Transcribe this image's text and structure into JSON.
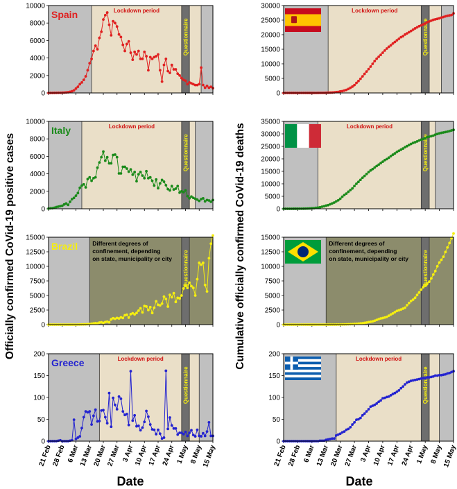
{
  "figure": {
    "left_ylabel": "Officially confirmed CoVid-19 positive cases",
    "right_ylabel": "Cumulative officially confirmed CoVid-19 deaths",
    "left_xlabel": "Date",
    "right_xlabel": "Date"
  },
  "colors": {
    "background_gray": "#c0c0c0",
    "lockdown_beige": "#eadfc8",
    "questionnaire_dark": "#6e6e6e",
    "brazil_olive": "#8c8c6c",
    "spain": "#e02020",
    "italy": "#1a8a1a",
    "brazil": "#f5ee10",
    "greece": "#2323d0",
    "questionnaire_text": "#f5ee10",
    "lockdown_text_red": "#d01010"
  },
  "chart_data": [
    {
      "id": "spain-cases",
      "type": "line",
      "country": "Spain",
      "title": "Spain",
      "ylim": [
        0,
        10000
      ],
      "yticks": [
        "0",
        "2000",
        "4000",
        "6000",
        "8000",
        "10000"
      ],
      "xticks": [
        "21 Feb",
        "28 Feb",
        "6 Mar",
        "13 Mar",
        "20 Mar",
        "27 Mar",
        "3 Apr",
        "10 Apr",
        "17 Apr",
        "24 Apr",
        "1 May",
        "8 May",
        "15 May"
      ],
      "xlim_days": [
        0,
        84
      ],
      "lockdown_days": [
        22,
        78
      ],
      "lockdown_label": "Lockdown period",
      "questionnaire_days": [
        68,
        72
      ],
      "questionnaire_label": "Questionnaire",
      "series": [
        {
          "values": [
            0,
            0,
            0,
            5,
            10,
            15,
            20,
            30,
            40,
            60,
            80,
            130,
            200,
            300,
            500,
            700,
            1000,
            1200,
            1500,
            1900,
            2600,
            3400,
            3900,
            4800,
            5400,
            5000,
            6300,
            7000,
            8400,
            8900,
            9200,
            7800,
            6600,
            8200,
            8000,
            7600,
            6700,
            6400,
            5500,
            4800,
            5600,
            5900,
            4600,
            3800,
            4700,
            4400,
            4800,
            3900,
            3900,
            4700,
            4200,
            2600,
            4100,
            3900,
            4100,
            4200,
            4400,
            2600,
            1300,
            3200,
            3900,
            2500,
            2300,
            3200,
            2700,
            2700,
            2200,
            2000,
            1700,
            1500,
            1400,
            1000,
            1200,
            1100,
            1000,
            900,
            900,
            1000,
            2900,
            900,
            600,
            800,
            600,
            700,
            550
          ]
        }
      ]
    },
    {
      "id": "spain-deaths",
      "type": "line",
      "country": "Spain",
      "flag": "spain-flag",
      "ylim": [
        0,
        30000
      ],
      "yticks": [
        "0",
        "5000",
        "10000",
        "15000",
        "20000",
        "25000",
        "30000"
      ],
      "xticks": [
        "21 Feb",
        "28 Feb",
        "6 Mar",
        "13 Mar",
        "20 Mar",
        "27 Mar",
        "3 Apr",
        "10 Apr",
        "17 Apr",
        "24 Apr",
        "1 May",
        "8 May",
        "15 May"
      ],
      "xlim_days": [
        0,
        84
      ],
      "lockdown_days": [
        22,
        78
      ],
      "lockdown_label": "Lockdown period",
      "questionnaire_days": [
        68,
        72
      ],
      "questionnaire_label": "Questionnaire",
      "series": [
        {
          "values": [
            0,
            0,
            0,
            0,
            0,
            0,
            0,
            0,
            0,
            0,
            0,
            0,
            0,
            0,
            1,
            3,
            5,
            10,
            17,
            28,
            35,
            48,
            84,
            120,
            136,
            200,
            289,
            342,
            533,
            623,
            830,
            1043,
            1375,
            1772,
            2182,
            2696,
            3434,
            4089,
            4858,
            5690,
            6528,
            7340,
            8189,
            9053,
            10003,
            10935,
            11744,
            12418,
            13055,
            13798,
            14555,
            15238,
            15843,
            16353,
            16972,
            17489,
            18056,
            18579,
            19130,
            19478,
            20043,
            20453,
            20852,
            21282,
            21717,
            22157,
            22524,
            22902,
            23190,
            23521,
            23822,
            24275,
            24543,
            24824,
            25100,
            25264,
            25428,
            25613,
            25857,
            26070,
            26299,
            26478,
            26621,
            26744,
            27321
          ]
        }
      ]
    },
    {
      "id": "italy-cases",
      "type": "line",
      "country": "Italy",
      "title": "Italy",
      "ylim": [
        0,
        10000
      ],
      "yticks": [
        "0",
        "2000",
        "4000",
        "6000",
        "8000",
        "10000"
      ],
      "xticks": [
        "21 Feb",
        "28 Feb",
        "6 Mar",
        "13 Mar",
        "20 Mar",
        "27 Mar",
        "3 Apr",
        "10 Apr",
        "17 Apr",
        "24 Apr",
        "1 May",
        "8 May",
        "15 May"
      ],
      "xlim_days": [
        0,
        84
      ],
      "lockdown_days": [
        17,
        75
      ],
      "lockdown_label": "Lockdown period",
      "questionnaire_days": [
        68,
        72
      ],
      "questionnaire_label": "Questionnaire",
      "series": [
        {
          "values": [
            20,
            60,
            70,
            120,
            200,
            250,
            300,
            350,
            500,
            600,
            450,
            800,
            1100,
            1250,
            1500,
            1800,
            2400,
            2650,
            2800,
            2450,
            3400,
            3600,
            3200,
            3500,
            3600,
            4700,
            5300,
            5900,
            6550,
            5500,
            5900,
            5200,
            5200,
            6150,
            6200,
            5900,
            4050,
            4050,
            4800,
            4800,
            4600,
            4250,
            4500,
            3900,
            4200,
            3150,
            3950,
            4200,
            3800,
            3500,
            4300,
            3500,
            3600,
            3200,
            2650,
            3350,
            2350,
            2900,
            3300,
            3100,
            2700,
            2250,
            2100,
            2600,
            2200,
            2300,
            2600,
            1850,
            2000,
            1900,
            2100,
            1450,
            1200,
            1400,
            1250,
            1150,
            1050,
            900,
            1100,
            1200,
            850,
            1000,
            950,
            800,
            1000
          ]
        }
      ]
    },
    {
      "id": "italy-deaths",
      "type": "line",
      "country": "Italy",
      "flag": "italy-flag",
      "ylim": [
        0,
        35000
      ],
      "yticks": [
        "0",
        "5000",
        "10000",
        "15000",
        "20000",
        "25000",
        "30000",
        "35000"
      ],
      "xticks": [
        "21 Feb",
        "28 Feb",
        "6 Mar",
        "13 Mar",
        "20 Mar",
        "27 Mar",
        "3 Apr",
        "10 Apr",
        "17 Apr",
        "24 Apr",
        "1 May",
        "8 May",
        "15 May"
      ],
      "xlim_days": [
        0,
        84
      ],
      "lockdown_days": [
        17,
        75
      ],
      "lockdown_label": "Lockdown period",
      "questionnaire_days": [
        68,
        72
      ],
      "questionnaire_label": "Questionnaire",
      "series": [
        {
          "values": [
            1,
            2,
            3,
            7,
            10,
            12,
            17,
            21,
            29,
            34,
            52,
            79,
            107,
            148,
            197,
            233,
            366,
            463,
            631,
            827,
            1016,
            1266,
            1441,
            1809,
            2158,
            2503,
            2978,
            3405,
            4032,
            4825,
            5476,
            6077,
            6820,
            7503,
            8165,
            9134,
            10023,
            10779,
            11591,
            12428,
            13155,
            13915,
            14681,
            15362,
            15887,
            16523,
            17127,
            17669,
            18279,
            18849,
            19468,
            19899,
            20465,
            21067,
            21645,
            22170,
            22745,
            23227,
            23660,
            24114,
            24648,
            25085,
            25549,
            25969,
            26384,
            26644,
            26977,
            27359,
            27682,
            27967,
            28236,
            28710,
            28884,
            29079,
            29315,
            29684,
            29958,
            30201,
            30395,
            30560,
            30739,
            30911,
            31106,
            31368,
            31610
          ]
        }
      ]
    },
    {
      "id": "brazil-cases",
      "type": "line",
      "country": "Brazil",
      "title": "Brazil",
      "ylim": [
        0,
        15000
      ],
      "yticks": [
        "0",
        "2500",
        "5000",
        "7500",
        "10000",
        "12500",
        "15000"
      ],
      "xticks": [
        "21 Feb",
        "28 Feb",
        "6 Mar",
        "13 Mar",
        "20 Mar",
        "27 Mar",
        "3 Apr",
        "10 Apr",
        "17 Apr",
        "24 Apr",
        "1 May",
        "8 May",
        "15 May"
      ],
      "xlim_days": [
        0,
        84
      ],
      "confinement_days": [
        21,
        84
      ],
      "confinement_label": [
        "Different degrees of",
        "confinement, depending",
        "on state, municipality or city"
      ],
      "questionnaire_days": [
        68,
        72
      ],
      "questionnaire_label": "Questionnaire",
      "series": [
        {
          "values": [
            0,
            0,
            0,
            0,
            0,
            0,
            0,
            0,
            0,
            0,
            0,
            0,
            0,
            0,
            0,
            10,
            20,
            30,
            40,
            50,
            80,
            100,
            150,
            200,
            250,
            200,
            350,
            400,
            300,
            450,
            500,
            400,
            900,
            1100,
            1000,
            1150,
            1050,
            1250,
            1150,
            1600,
            1700,
            1200,
            1800,
            1950,
            1750,
            2000,
            2400,
            2800,
            2100,
            3200,
            3100,
            2500,
            3000,
            2000,
            2900,
            4000,
            3400,
            3300,
            3600,
            4800,
            4400,
            3100,
            5100,
            4700,
            5400,
            3900,
            4600,
            4500,
            5000,
            6200,
            6700,
            6300,
            7200,
            6600,
            6300,
            5000,
            7800,
            10600,
            10300,
            10600,
            6800,
            5700,
            11400,
            13900,
            15300
          ]
        }
      ]
    },
    {
      "id": "brazil-deaths",
      "type": "line",
      "country": "Brazil",
      "flag": "brazil-flag",
      "ylim": [
        0,
        15000
      ],
      "yticks": [
        "0",
        "2500",
        "5000",
        "7500",
        "10000",
        "12500",
        "15000"
      ],
      "xticks": [
        "21 Feb",
        "28 Feb",
        "6 Mar",
        "13 Mar",
        "20 Mar",
        "27 Mar",
        "3 Apr",
        "10 Apr",
        "17 Apr",
        "24 Apr",
        "1 May",
        "8 May",
        "15 May"
      ],
      "xlim_days": [
        0,
        84
      ],
      "confinement_days": [
        21,
        84
      ],
      "confinement_label": [
        "Different degrees of",
        "confinement, depending",
        "on state, municipality or city"
      ],
      "questionnaire_days": [
        68,
        72
      ],
      "questionnaire_label": "Questionnaire",
      "series": [
        {
          "values": [
            0,
            0,
            0,
            0,
            0,
            0,
            0,
            0,
            0,
            0,
            0,
            0,
            0,
            0,
            0,
            0,
            0,
            0,
            0,
            0,
            0,
            0,
            0,
            0,
            1,
            3,
            6,
            11,
            18,
            25,
            34,
            46,
            57,
            77,
            92,
            114,
            136,
            159,
            201,
            240,
            299,
            359,
            432,
            486,
            553,
            667,
            800,
            941,
            1056,
            1124,
            1223,
            1328,
            1532,
            1736,
            1924,
            2141,
            2347,
            2462,
            2587,
            2741,
            2906,
            3331,
            3704,
            4057,
            4286,
            4603,
            5083,
            5513,
            6006,
            6412,
            6761,
            7051,
            7367,
            7938,
            8588,
            9190,
            10017,
            10656,
            11123,
            11653,
            12461,
            13240,
            13999,
            14817,
            15633
          ]
        }
      ]
    },
    {
      "id": "greece-cases",
      "type": "line",
      "country": "Greece",
      "title": "Greece",
      "ylim": [
        0,
        200
      ],
      "yticks": [
        "0",
        "50",
        "100",
        "150",
        "200"
      ],
      "xticks": [
        "21 Feb",
        "28 Feb",
        "6 Mar",
        "13 Mar",
        "20 Mar",
        "27 Mar",
        "3 Apr",
        "10 Apr",
        "17 Apr",
        "24 Apr",
        "1 May",
        "8 May",
        "15 May"
      ],
      "xlim_days": [
        0,
        84
      ],
      "lockdown_days": [
        26,
        77
      ],
      "lockdown_label": "Lockdown period",
      "questionnaire_days": [
        68,
        72
      ],
      "questionnaire_label": "Questionnaire",
      "series": [
        {
          "values": [
            0,
            0,
            0,
            0,
            0,
            1,
            2,
            0,
            0,
            0,
            0,
            1,
            2,
            49,
            5,
            8,
            11,
            30,
            55,
            68,
            66,
            68,
            38,
            58,
            72,
            45,
            46,
            70,
            71,
            55,
            41,
            110,
            33,
            99,
            83,
            73,
            102,
            97,
            68,
            60,
            62,
            37,
            160,
            47,
            59,
            34,
            35,
            25,
            31,
            44,
            69,
            56,
            38,
            27,
            26,
            16,
            26,
            17,
            6,
            8,
            161,
            28,
            54,
            36,
            29,
            29,
            15,
            19,
            19,
            16,
            21,
            12,
            19,
            25,
            14,
            11,
            26,
            12,
            11,
            18,
            12,
            22,
            43,
            12,
            12
          ]
        }
      ]
    },
    {
      "id": "greece-deaths",
      "type": "line",
      "country": "Greece",
      "flag": "greece-flag",
      "ylim": [
        0,
        200
      ],
      "yticks": [
        "0",
        "50",
        "100",
        "150",
        "200"
      ],
      "xticks": [
        "21 Feb",
        "28 Feb",
        "6 Mar",
        "13 Mar",
        "20 Mar",
        "27 Mar",
        "3 Apr",
        "10 Apr",
        "17 Apr",
        "24 Apr",
        "1 May",
        "8 May",
        "15 May"
      ],
      "xlim_days": [
        0,
        84
      ],
      "lockdown_days": [
        26,
        77
      ],
      "lockdown_label": "Lockdown period",
      "questionnaire_days": [
        68,
        72
      ],
      "questionnaire_label": "Questionnaire",
      "series": [
        {
          "values": [
            0,
            0,
            0,
            0,
            0,
            0,
            0,
            0,
            0,
            0,
            0,
            0,
            0,
            0,
            0,
            0,
            0,
            0,
            1,
            1,
            1,
            3,
            4,
            5,
            6,
            6,
            13,
            15,
            17,
            20,
            22,
            26,
            28,
            32,
            38,
            43,
            49,
            50,
            53,
            59,
            63,
            68,
            73,
            79,
            81,
            83,
            86,
            90,
            93,
            98,
            99,
            101,
            102,
            105,
            108,
            110,
            113,
            116,
            121,
            125,
            130,
            134,
            136,
            138,
            139,
            140,
            141,
            142,
            143,
            144,
            144,
            146,
            146,
            147,
            148,
            150,
            150,
            151,
            151,
            152,
            153,
            155,
            156,
            158,
            160
          ]
        }
      ]
    }
  ]
}
